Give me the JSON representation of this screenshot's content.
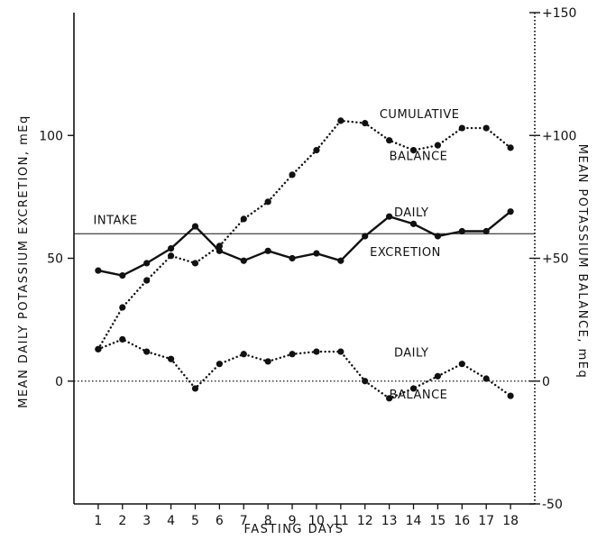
{
  "chart_data": {
    "type": "line",
    "xlabel": "FASTING DAYS",
    "ylabel_left": "MEAN DAILY POTASSIUM EXCRETION, mEq",
    "ylabel_right": "MEAN POTASSIUM BALANCE, mEq",
    "x": [
      1,
      2,
      3,
      4,
      5,
      6,
      7,
      8,
      9,
      10,
      11,
      12,
      13,
      14,
      15,
      16,
      17,
      18
    ],
    "x_tick_labels": [
      "1",
      "2",
      "3",
      "4",
      "5",
      "6",
      "7",
      "8",
      "9",
      "10",
      "11",
      "12",
      "13",
      "14",
      "15",
      "16",
      "17",
      "18"
    ],
    "xlim": [
      0,
      19
    ],
    "ylim_left": [
      -50,
      150
    ],
    "ylim_right": [
      -50,
      150
    ],
    "y_ticks_left": [
      0,
      50,
      100
    ],
    "y_tick_labels_left": [
      "0",
      "50",
      "100"
    ],
    "y_ticks_right": [
      -50,
      0,
      50,
      100,
      150
    ],
    "y_tick_labels_right": [
      "-50",
      "0",
      "+50",
      "+100",
      "+150"
    ],
    "intake_level": 60,
    "zero_line": 0,
    "series": [
      {
        "style": "solid",
        "values": [
          45,
          43,
          48,
          54,
          63,
          53,
          49,
          53,
          50,
          52,
          49,
          59,
          67,
          64,
          59,
          61,
          61,
          69
        ]
      },
      {
        "style": "dotted",
        "values": [
          13,
          30,
          41,
          51,
          48,
          55,
          66,
          73,
          84,
          94,
          106,
          105,
          98,
          94,
          96,
          103,
          103,
          95
        ]
      },
      {
        "style": "dotted",
        "values": [
          13,
          17,
          12,
          9,
          -3,
          7,
          11,
          8,
          11,
          12,
          12,
          0,
          -7,
          -3,
          2,
          7,
          1,
          -6
        ]
      }
    ],
    "annotations": [
      {
        "text": "INTAKE",
        "x": 0.8,
        "y": 64
      },
      {
        "text": "CUMULATIVE",
        "x": 12.6,
        "y": 107
      },
      {
        "text": "BALANCE",
        "x": 13.0,
        "y": 90
      },
      {
        "text": "DAILY",
        "x": 13.2,
        "y": 67
      },
      {
        "text": "EXCRETION",
        "x": 12.2,
        "y": 51
      },
      {
        "text": "DAILY",
        "x": 13.2,
        "y": 10
      },
      {
        "text": "BALANCE",
        "x": 13.0,
        "y": -7
      }
    ]
  }
}
